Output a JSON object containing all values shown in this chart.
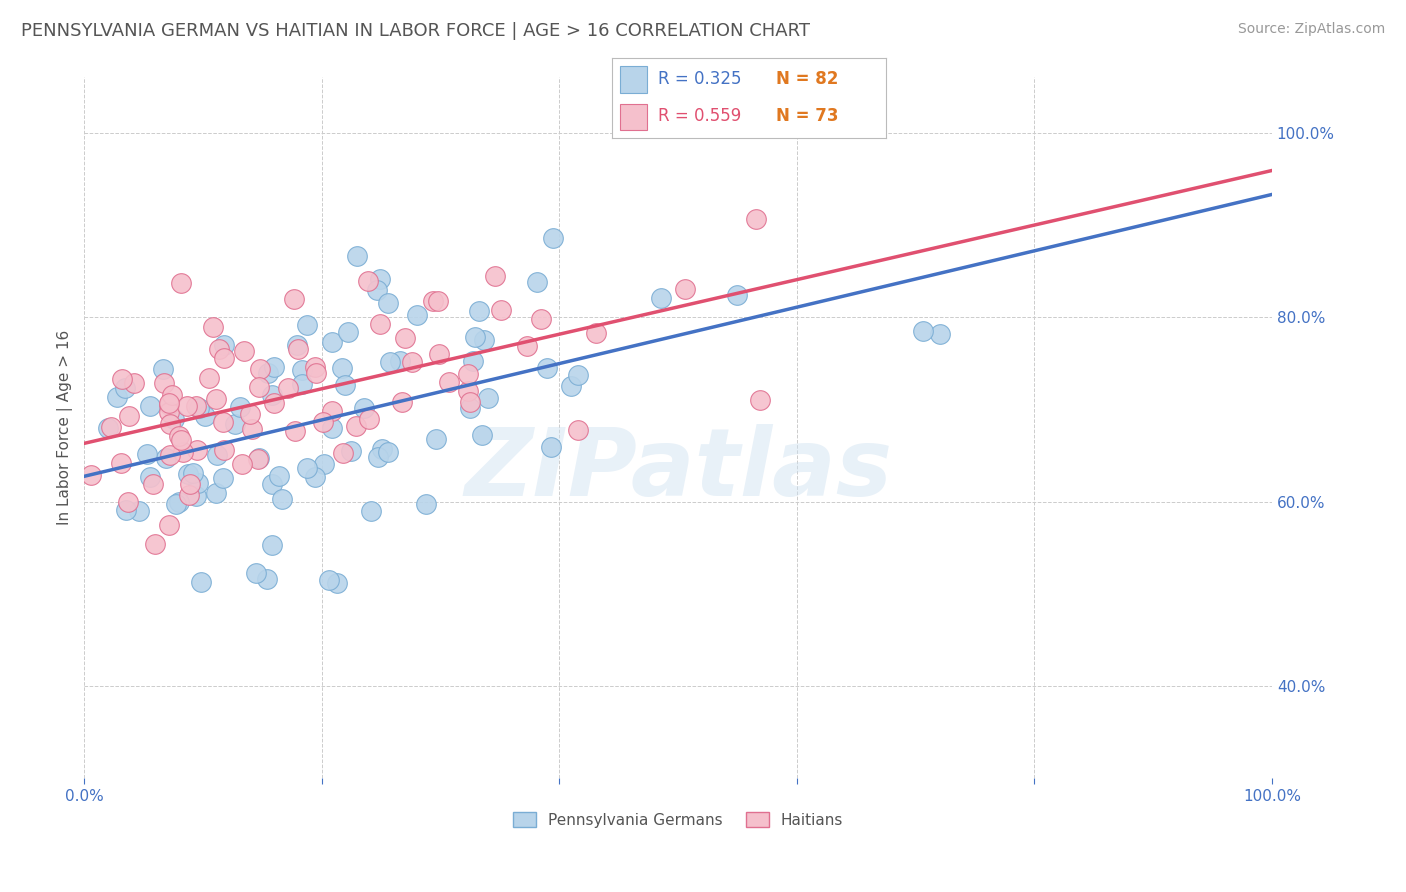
{
  "title": "PENNSYLVANIA GERMAN VS HAITIAN IN LABOR FORCE | AGE > 16 CORRELATION CHART",
  "source": "Source: ZipAtlas.com",
  "ylabel": "In Labor Force | Age > 16",
  "xlim": [
    0,
    1
  ],
  "ylim": [
    0.3,
    1.06
  ],
  "yticks_right": [
    0.4,
    0.6,
    0.8,
    1.0
  ],
  "blue_color": "#b8d4ea",
  "blue_edge": "#7aadd4",
  "pink_color": "#f5c0cc",
  "pink_edge": "#e07090",
  "blue_line_color": "#4472c4",
  "pink_line_color": "#e05070",
  "R_blue": 0.325,
  "N_blue": 82,
  "R_pink": 0.559,
  "N_pink": 73,
  "legend_label_blue": "Pennsylvania Germans",
  "legend_label_pink": "Haitians",
  "watermark": "ZIPatlas",
  "grid_color": "#cccccc",
  "background_color": "#ffffff",
  "title_color": "#555555",
  "axis_label_color": "#555555",
  "tick_color": "#4472c4",
  "title_fontsize": 13,
  "source_fontsize": 10,
  "axis_label_fontsize": 11,
  "tick_fontsize": 11
}
